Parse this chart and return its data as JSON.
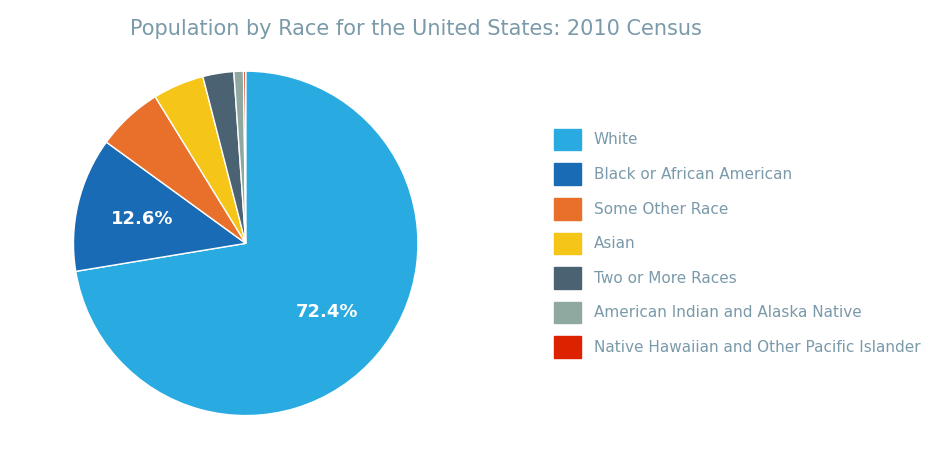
{
  "title": "Population by Race for the United States: 2010 Census",
  "labels": [
    "White",
    "Black or African American",
    "Some Other Race",
    "Asian",
    "Two or More Races",
    "American Indian and Alaska Native",
    "Native Hawaiian and Other Pacific Islander"
  ],
  "values": [
    72.4,
    12.6,
    6.2,
    4.8,
    2.9,
    0.9,
    0.2
  ],
  "colors": [
    "#29ABE2",
    "#1A6BB5",
    "#E8702A",
    "#F5C518",
    "#4A6272",
    "#8FA8A0",
    "#DD2200"
  ],
  "title_fontsize": 15,
  "title_color": "#7A9AAA",
  "legend_fontsize": 11,
  "legend_text_color": "#7A9AAA",
  "background_color": "#ffffff",
  "pct_white": "72.4%",
  "pct_black": "12.6%"
}
